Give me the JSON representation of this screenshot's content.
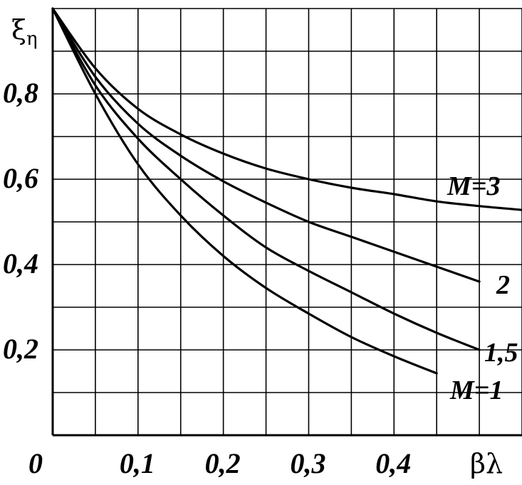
{
  "chart_data": {
    "type": "line",
    "xlabel": "βλ",
    "ylabel": "ξη",
    "xlim": [
      0,
      0.55
    ],
    "ylim": [
      0,
      1.0
    ],
    "x_tick_labels": [
      "0",
      "0,1",
      "0,2",
      "0,3",
      "0,4"
    ],
    "y_tick_labels": [
      "0,2",
      "0,4",
      "0,6",
      "0,8"
    ],
    "grid": true,
    "series": [
      {
        "name": "M=3",
        "x": [
          0,
          0.05,
          0.1,
          0.15,
          0.2,
          0.25,
          0.3,
          0.35,
          0.4,
          0.45,
          0.5,
          0.55
        ],
        "y": [
          1.0,
          0.86,
          0.765,
          0.705,
          0.66,
          0.625,
          0.6,
          0.58,
          0.565,
          0.548,
          0.537,
          0.528
        ]
      },
      {
        "name": "2",
        "x": [
          0,
          0.05,
          0.1,
          0.15,
          0.2,
          0.25,
          0.3,
          0.35,
          0.4,
          0.45,
          0.5
        ],
        "y": [
          1.0,
          0.84,
          0.73,
          0.655,
          0.595,
          0.545,
          0.5,
          0.465,
          0.43,
          0.395,
          0.36
        ]
      },
      {
        "name": "1,5",
        "x": [
          0,
          0.05,
          0.1,
          0.15,
          0.2,
          0.25,
          0.3,
          0.35,
          0.4,
          0.45,
          0.5
        ],
        "y": [
          1.0,
          0.82,
          0.695,
          0.6,
          0.515,
          0.44,
          0.385,
          0.335,
          0.285,
          0.24,
          0.2
        ]
      },
      {
        "name": "M=1",
        "x": [
          0,
          0.05,
          0.1,
          0.15,
          0.2,
          0.25,
          0.3,
          0.35,
          0.4,
          0.45
        ],
        "y": [
          1.0,
          0.8,
          0.635,
          0.515,
          0.42,
          0.345,
          0.285,
          0.23,
          0.185,
          0.145
        ]
      }
    ]
  }
}
